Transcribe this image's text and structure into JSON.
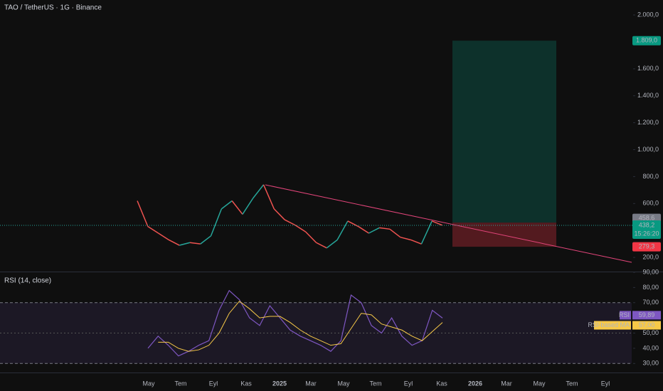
{
  "chart_data": [
    {
      "type": "line",
      "title": "TAO / TetherUS · 1G · Binance",
      "series": [
        {
          "name": "TAO",
          "color": "#26a69a",
          "down_color": "#ef5350",
          "values": [
            620,
            430,
            380,
            330,
            290,
            310,
            300,
            360,
            560,
            620,
            520,
            640,
            740,
            560,
            480,
            440,
            390,
            310,
            270,
            330,
            470,
            430,
            380,
            420,
            410,
            350,
            330,
            300,
            470,
            438.2
          ]
        }
      ],
      "ylim": [
        95,
        2111
      ],
      "yticks": [
        {
          "value": 2000,
          "label": "2.000,0"
        },
        {
          "value": 1600,
          "label": "1.600,0"
        },
        {
          "value": 1400,
          "label": "1.400,0"
        },
        {
          "value": 1200,
          "label": "1.200,0"
        },
        {
          "value": 1000,
          "label": "1.000,0"
        },
        {
          "value": 800,
          "label": "800,0"
        },
        {
          "value": 600,
          "label": "600,0"
        },
        {
          "value": 200,
          "label": "200,0"
        }
      ],
      "position": {
        "target": 1809,
        "target_label": "1.809,0",
        "entry": 458.6,
        "entry_label": "458,6",
        "stop": 279.3,
        "stop_label": "279,3"
      },
      "last": {
        "value": 438.2,
        "label": "438,2",
        "countdown": "15:26:20"
      },
      "xticks": [
        "May",
        "Tem",
        "Eyl",
        "Kas",
        "2025",
        "Mar",
        "May",
        "Tem",
        "Eyl",
        "Kas",
        "2026",
        "Mar",
        "May",
        "Tem",
        "Eyl"
      ]
    },
    {
      "type": "line",
      "title": "RSI (14, close)",
      "series": [
        {
          "name": "RSI",
          "color": "#7e57c2",
          "values": [
            40,
            48,
            42,
            35,
            38,
            42,
            45,
            65,
            78,
            72,
            60,
            55,
            68,
            60,
            52,
            48,
            45,
            42,
            38,
            45,
            75,
            70,
            55,
            50,
            60,
            48,
            42,
            45,
            65,
            59.89
          ],
          "last_label": "59,89"
        },
        {
          "name": "RSI-based MA",
          "color": "#f7c948",
          "values": [
            null,
            44,
            44,
            40,
            38,
            39,
            42,
            50,
            63,
            71,
            66,
            60,
            61,
            61,
            57,
            52,
            48,
            45,
            42,
            43,
            53,
            63,
            62,
            56,
            54,
            52,
            48,
            45,
            51,
            57
          ],
          "last_label": "57,00"
        }
      ],
      "ylim": [
        25,
        90
      ],
      "yticks": [
        {
          "value": 90,
          "label": "90,00"
        },
        {
          "value": 80,
          "label": "80,00"
        },
        {
          "value": 70,
          "label": "70,00"
        },
        {
          "value": 50,
          "label": "50,00"
        },
        {
          "value": 40,
          "label": "40,00"
        },
        {
          "value": 30,
          "label": "30,00"
        }
      ],
      "band": [
        30,
        70
      ]
    }
  ]
}
